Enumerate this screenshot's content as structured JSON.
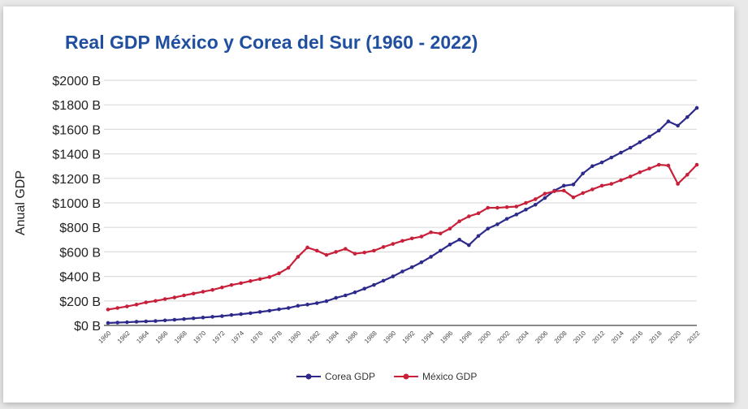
{
  "chart_data": {
    "type": "line",
    "title": "Real GDP México y Corea del Sur (1960 - 2022)",
    "xlabel": "",
    "ylabel": "Anual GDP",
    "ylim": [
      0,
      2000
    ],
    "xlim": [
      1960,
      2022
    ],
    "grid": true,
    "legend": "bottom",
    "y_ticks": [
      "$0 B",
      "$200 B",
      "$400 B",
      "$600 B",
      "$800 B",
      "$1000 B",
      "$1200 B",
      "$1400 B",
      "$1600 B",
      "$1800 B",
      "$2000 B"
    ],
    "x_ticks": [
      "1960",
      "1962",
      "1964",
      "1966",
      "1968",
      "1970",
      "1972",
      "1974",
      "1976",
      "1978",
      "1980",
      "1982",
      "1984",
      "1986",
      "1988",
      "1990",
      "1992",
      "1994",
      "1996",
      "1998",
      "2000",
      "2002",
      "2004",
      "2006",
      "2008",
      "2010",
      "2012",
      "2014",
      "2016",
      "2018",
      "2020",
      "2022"
    ],
    "x": [
      1960,
      1961,
      1962,
      1963,
      1964,
      1965,
      1966,
      1967,
      1968,
      1969,
      1970,
      1971,
      1972,
      1973,
      1974,
      1975,
      1976,
      1977,
      1978,
      1979,
      1980,
      1981,
      1982,
      1983,
      1984,
      1985,
      1986,
      1987,
      1988,
      1989,
      1990,
      1991,
      1992,
      1993,
      1994,
      1995,
      1996,
      1997,
      1998,
      1999,
      2000,
      2001,
      2002,
      2003,
      2004,
      2005,
      2006,
      2007,
      2008,
      2009,
      2010,
      2011,
      2012,
      2013,
      2014,
      2015,
      2016,
      2017,
      2018,
      2019,
      2020,
      2021,
      2022
    ],
    "series": [
      {
        "name": "Corea GDP",
        "color": "#2e2a8c",
        "values": [
          20,
          23,
          26,
          30,
          33,
          36,
          41,
          46,
          52,
          58,
          64,
          70,
          76,
          85,
          92,
          100,
          110,
          120,
          132,
          142,
          160,
          170,
          182,
          198,
          225,
          245,
          270,
          300,
          330,
          365,
          400,
          440,
          475,
          515,
          560,
          610,
          660,
          700,
          655,
          730,
          790,
          825,
          870,
          905,
          945,
          985,
          1040,
          1100,
          1140,
          1150,
          1240,
          1300,
          1330,
          1370,
          1410,
          1450,
          1495,
          1540,
          1590,
          1665,
          1630,
          1700,
          1775
        ]
      },
      {
        "name": "México GDP",
        "color": "#c8203a",
        "values": [
          130,
          142,
          155,
          170,
          188,
          200,
          215,
          228,
          245,
          260,
          275,
          290,
          310,
          330,
          345,
          362,
          378,
          395,
          425,
          470,
          560,
          636,
          610,
          575,
          600,
          625,
          585,
          595,
          610,
          640,
          665,
          690,
          710,
          725,
          760,
          750,
          790,
          850,
          890,
          915,
          960,
          960,
          965,
          970,
          1000,
          1030,
          1075,
          1095,
          1100,
          1045,
          1080,
          1110,
          1140,
          1155,
          1185,
          1215,
          1250,
          1280,
          1311,
          1305,
          1155,
          1230,
          1311
        ]
      }
    ]
  }
}
